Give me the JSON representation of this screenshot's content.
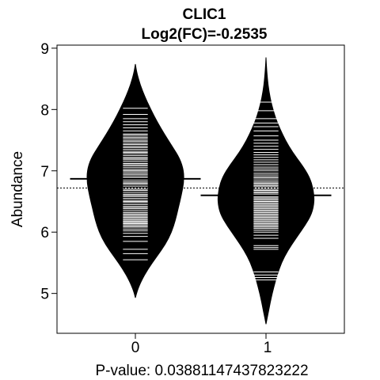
{
  "chart_data": {
    "type": "beanplot",
    "title": "CLIC1",
    "subtitle": "Log2(FC)=-0.2535",
    "ylabel": "Abundance",
    "xlabel": "P-value: 0.03881147437823222",
    "categories": [
      "0",
      "1"
    ],
    "ylim": [
      4.35,
      9.05
    ],
    "xlim": [
      -0.6,
      1.6
    ],
    "yticks": [
      5,
      6,
      7,
      8,
      9
    ],
    "overall_mean": 6.72,
    "series": [
      {
        "category": "0",
        "mean": 6.87,
        "observations": [
          5.55,
          5.65,
          5.72,
          5.85,
          5.93,
          5.98,
          6.02,
          6.05,
          6.08,
          6.1,
          6.12,
          6.14,
          6.15,
          6.17,
          6.18,
          6.2,
          6.22,
          6.24,
          6.26,
          6.28,
          6.3,
          6.32,
          6.35,
          6.38,
          6.4,
          6.42,
          6.45,
          6.48,
          6.5,
          6.52,
          6.55,
          6.58,
          6.6,
          6.62,
          6.65,
          6.68,
          6.7,
          6.72,
          6.75,
          6.78,
          6.8,
          6.82,
          6.85,
          6.88,
          6.9,
          6.93,
          6.95,
          6.98,
          7.0,
          7.02,
          7.05,
          7.08,
          7.1,
          7.12,
          7.15,
          7.18,
          7.2,
          7.22,
          7.25,
          7.28,
          7.3,
          7.32,
          7.35,
          7.38,
          7.4,
          7.43,
          7.45,
          7.48,
          7.5,
          7.53,
          7.55,
          7.58,
          7.6,
          7.65,
          7.7,
          7.75,
          7.8,
          7.85,
          7.92,
          8.02
        ]
      },
      {
        "category": "1",
        "mean": 6.6,
        "observations": [
          5.22,
          5.26,
          5.3,
          5.35,
          5.72,
          5.75,
          5.78,
          5.9,
          5.95,
          6.0,
          6.03,
          6.06,
          6.08,
          6.1,
          6.12,
          6.14,
          6.16,
          6.18,
          6.2,
          6.22,
          6.24,
          6.26,
          6.28,
          6.3,
          6.32,
          6.34,
          6.36,
          6.38,
          6.4,
          6.42,
          6.44,
          6.46,
          6.48,
          6.5,
          6.52,
          6.54,
          6.56,
          6.58,
          6.6,
          6.62,
          6.64,
          6.66,
          6.68,
          6.7,
          6.72,
          6.74,
          6.76,
          6.78,
          6.8,
          6.82,
          6.85,
          6.88,
          6.9,
          6.93,
          6.96,
          7.0,
          7.03,
          7.06,
          7.1,
          7.14,
          7.18,
          7.22,
          7.26,
          7.3,
          7.35,
          7.4,
          7.45,
          7.5,
          7.57,
          7.65,
          7.72,
          7.78,
          7.85,
          7.98,
          8.12
        ]
      }
    ],
    "density_profile": [
      {
        "category": "0",
        "y": [
          4.93,
          5.05,
          5.2,
          5.4,
          5.6,
          5.8,
          6.0,
          6.2,
          6.4,
          6.6,
          6.8,
          7.0,
          7.2,
          7.4,
          7.6,
          7.8,
          8.0,
          8.2,
          8.4,
          8.6,
          8.74
        ],
        "density": [
          0.0,
          0.04,
          0.12,
          0.26,
          0.44,
          0.62,
          0.75,
          0.83,
          0.89,
          0.95,
          1.0,
          1.0,
          0.92,
          0.76,
          0.6,
          0.45,
          0.32,
          0.2,
          0.1,
          0.03,
          0.0
        ]
      },
      {
        "category": "1",
        "y": [
          4.5,
          4.7,
          4.9,
          5.1,
          5.3,
          5.5,
          5.7,
          5.9,
          6.1,
          6.3,
          6.5,
          6.7,
          6.9,
          7.1,
          7.3,
          7.5,
          7.7,
          7.9,
          8.1,
          8.3,
          8.5,
          8.7,
          8.85
        ],
        "density": [
          0.0,
          0.05,
          0.1,
          0.16,
          0.23,
          0.32,
          0.45,
          0.62,
          0.8,
          0.95,
          1.0,
          0.98,
          0.9,
          0.74,
          0.55,
          0.4,
          0.28,
          0.18,
          0.11,
          0.06,
          0.03,
          0.01,
          0.0
        ]
      }
    ],
    "grid": false,
    "legend": "none"
  }
}
